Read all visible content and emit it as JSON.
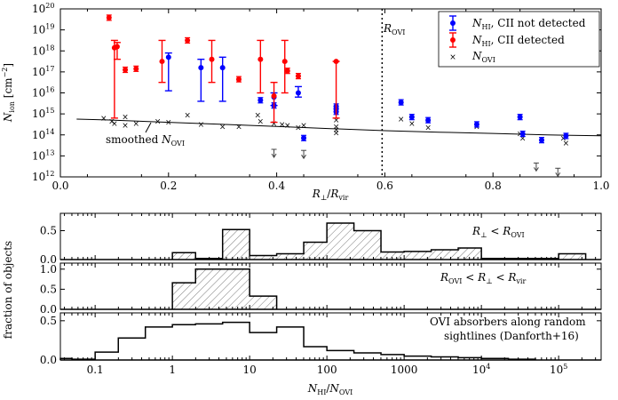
{
  "chart_data": [
    {
      "type": "scatter",
      "xlabel_main": "R",
      "xlabel_sub1": "⊥",
      "xlabel_sep": "/",
      "xlabel_main2": "R",
      "xlabel_sub2": "vir",
      "ylabel_main": "N",
      "ylabel_sub": "ion",
      "ylabel_unit": " [cm",
      "ylabel_unit_exp": "−2",
      "ylabel_unit_end": "]",
      "xlim": [
        0.0,
        1.0
      ],
      "ylim_log10": [
        12,
        20
      ],
      "x_ticks": [
        "0.0",
        "0.2",
        "0.4",
        "0.6",
        "0.8",
        "1.0"
      ],
      "y_ticks": [
        {
          "e": "12",
          "v": 12
        },
        {
          "e": "13",
          "v": 13
        },
        {
          "e": "14",
          "v": 14
        },
        {
          "e": "15",
          "v": 15
        },
        {
          "e": "16",
          "v": 16
        },
        {
          "e": "17",
          "v": 17
        },
        {
          "e": "18",
          "v": 18
        },
        {
          "e": "19",
          "v": 19
        },
        {
          "e": "20",
          "v": 20
        }
      ],
      "tick_base": "10",
      "vline": {
        "x": 0.595,
        "label_main": "R",
        "label_sub": "OVI"
      },
      "smoothed": {
        "label_pre": "smoothed ",
        "label_main": "N",
        "label_sub": "OVI",
        "x": [
          0.03,
          0.1,
          0.2,
          0.3,
          0.4,
          0.5,
          0.6,
          0.7,
          0.8,
          0.9,
          1.0
        ],
        "log_y": [
          14.75,
          14.7,
          14.6,
          14.5,
          14.4,
          14.3,
          14.2,
          14.13,
          14.07,
          14.0,
          13.96
        ]
      },
      "legend": {
        "position": "top-right",
        "entries": [
          {
            "key": "blue",
            "main": "N",
            "sub": "HI",
            "rest": ", CII not detected",
            "color": "#0000ff"
          },
          {
            "key": "red",
            "main": "N",
            "sub": "HI",
            "rest": ", CII detected",
            "color": "#ff0000"
          },
          {
            "key": "ovi",
            "main": "N",
            "sub": "OVI",
            "rest": "",
            "color": "#555555"
          }
        ]
      },
      "series_red": [
        {
          "x": 0.09,
          "y": 19.58
        },
        {
          "x": 0.1,
          "y": 18.15,
          "lo": 14.8,
          "hi": 18.5
        },
        {
          "x": 0.105,
          "y": 18.2,
          "lo": 17.6,
          "hi": 18.4
        },
        {
          "x": 0.12,
          "y": 17.1
        },
        {
          "x": 0.14,
          "y": 17.15
        },
        {
          "x": 0.188,
          "y": 17.5,
          "lo": 16.5,
          "hi": 18.5
        },
        {
          "x": 0.235,
          "y": 18.5
        },
        {
          "x": 0.28,
          "y": 17.6,
          "lo": 16.5,
          "hi": 18.5
        },
        {
          "x": 0.33,
          "y": 16.65
        },
        {
          "x": 0.37,
          "y": 17.6,
          "lo": 16.0,
          "hi": 18.5
        },
        {
          "x": 0.395,
          "y": 15.85,
          "lo": 14.6,
          "hi": 16.5
        },
        {
          "x": 0.415,
          "y": 17.5,
          "lo": 16.0,
          "hi": 18.5
        },
        {
          "x": 0.42,
          "y": 17.05
        },
        {
          "x": 0.44,
          "y": 16.8
        },
        {
          "x": 0.51,
          "y": 17.5,
          "lo": 14.8,
          "hi": 17.5
        }
      ],
      "series_blue": [
        {
          "x": 0.2,
          "y": 17.7,
          "lo": 16.1,
          "hi": 17.9
        },
        {
          "x": 0.26,
          "y": 17.2,
          "lo": 15.6,
          "hi": 17.6
        },
        {
          "x": 0.3,
          "y": 17.2,
          "lo": 15.6,
          "hi": 17.7
        },
        {
          "x": 0.37,
          "y": 15.65
        },
        {
          "x": 0.395,
          "y": 15.8,
          "lo": 15.4,
          "hi": 16.0
        },
        {
          "x": 0.395,
          "y": 15.4
        },
        {
          "x": 0.44,
          "y": 16.0,
          "lo": 15.8,
          "hi": 16.3
        },
        {
          "x": 0.45,
          "y": 13.85
        },
        {
          "x": 0.51,
          "y": 15.35
        },
        {
          "x": 0.51,
          "y": 15.1
        },
        {
          "x": 0.51,
          "y": 15.25
        },
        {
          "x": 0.63,
          "y": 15.55
        },
        {
          "x": 0.65,
          "y": 14.85
        },
        {
          "x": 0.68,
          "y": 14.7
        },
        {
          "x": 0.77,
          "y": 14.5
        },
        {
          "x": 0.85,
          "y": 14.85
        },
        {
          "x": 0.855,
          "y": 14.05
        },
        {
          "x": 0.89,
          "y": 13.75
        },
        {
          "x": 0.935,
          "y": 13.95
        }
      ],
      "series_ovi": [
        {
          "x": 0.08,
          "y": 14.8
        },
        {
          "x": 0.095,
          "y": 14.65
        },
        {
          "x": 0.1,
          "y": 14.55
        },
        {
          "x": 0.12,
          "y": 14.85
        },
        {
          "x": 0.12,
          "y": 14.45
        },
        {
          "x": 0.14,
          "y": 14.55
        },
        {
          "x": 0.18,
          "y": 14.65
        },
        {
          "x": 0.2,
          "y": 14.6
        },
        {
          "x": 0.235,
          "y": 14.95
        },
        {
          "x": 0.26,
          "y": 14.5
        },
        {
          "x": 0.3,
          "y": 14.4
        },
        {
          "x": 0.33,
          "y": 14.4
        },
        {
          "x": 0.365,
          "y": 14.95
        },
        {
          "x": 0.37,
          "y": 14.65
        },
        {
          "x": 0.395,
          "y": 14.55
        },
        {
          "x": 0.41,
          "y": 14.5
        },
        {
          "x": 0.42,
          "y": 14.45
        },
        {
          "x": 0.44,
          "y": 14.35
        },
        {
          "x": 0.45,
          "y": 14.45
        },
        {
          "x": 0.51,
          "y": 14.7
        },
        {
          "x": 0.51,
          "y": 14.4
        },
        {
          "x": 0.51,
          "y": 14.25
        },
        {
          "x": 0.51,
          "y": 14.1
        },
        {
          "x": 0.63,
          "y": 14.75
        },
        {
          "x": 0.65,
          "y": 14.55
        },
        {
          "x": 0.68,
          "y": 14.35
        },
        {
          "x": 0.77,
          "y": 14.4
        },
        {
          "x": 0.85,
          "y": 14.05
        },
        {
          "x": 0.855,
          "y": 13.85
        },
        {
          "x": 0.93,
          "y": 13.85
        },
        {
          "x": 0.935,
          "y": 13.6
        }
      ],
      "upper_limits": [
        {
          "x": 0.395,
          "y": 13.1
        },
        {
          "x": 0.45,
          "y": 13.05
        },
        {
          "x": 0.88,
          "y": 12.45
        },
        {
          "x": 0.92,
          "y": 12.2
        }
      ]
    },
    {
      "type": "step-histogram",
      "shared_xlabel_main": "N",
      "shared_xlabel_sub": "HI",
      "shared_xlabel_sep": "/",
      "shared_xlabel_main2": "N",
      "shared_xlabel_sub2": "OVI",
      "shared_ylabel": "fraction of objects",
      "x_scale": "log",
      "xlim_log10": [
        -1.45,
        5.55
      ],
      "x_ticks": [
        {
          "v": -1,
          "text": "0.1"
        },
        {
          "v": 0,
          "text": "1"
        },
        {
          "v": 1,
          "text": "10"
        },
        {
          "v": 2,
          "text": "100"
        },
        {
          "v": 3,
          "text": "1000"
        },
        {
          "v": 4,
          "text": "10",
          "exp": "4"
        },
        {
          "v": 5,
          "text": "10",
          "exp": "5"
        }
      ],
      "panels": [
        {
          "label_main1": "R",
          "label_sub1": "⊥",
          "label_mid": " < ",
          "label_main2": "R",
          "label_sub2": "OVI",
          "ylim": [
            0,
            0.8
          ],
          "y_ticks": [
            "0.5",
            "0.0"
          ],
          "bin_edges_log10": [
            0,
            0.3,
            0.65,
            1.0,
            1.35,
            1.7,
            2.0,
            2.35,
            2.7,
            3.0,
            3.35,
            3.7,
            4.0,
            4.35,
            4.7,
            5.0,
            5.35
          ],
          "values": [
            0.12,
            0.02,
            0.52,
            0.07,
            0.1,
            0.3,
            0.63,
            0.5,
            0.13,
            0.14,
            0.17,
            0.2,
            0.02,
            0.02,
            0.02,
            0.1
          ],
          "hatched": true
        },
        {
          "label_main1": "R",
          "label_sub1": "OVI",
          "label_mid": " < ",
          "label_main2": "R",
          "label_sub2": "⊥",
          "label_mid2": " < ",
          "label_main3": "R",
          "label_sub3": "vir",
          "ylim": [
            0,
            1.15
          ],
          "y_ticks": [
            "1.0",
            "0.5",
            "0.0"
          ],
          "bin_edges_log10": [
            0,
            0.3,
            0.65,
            1.0,
            1.35
          ],
          "values": [
            0.66,
            1.0,
            1.0,
            0.33
          ],
          "hatched": true
        },
        {
          "label_line1": "OVI absorbers along random",
          "label_line2": "sightlines (Danforth+16)",
          "ylim": [
            0,
            0.6
          ],
          "y_ticks": [
            "0.5",
            "0.0"
          ],
          "bin_edges_log10": [
            -1.45,
            -1.3,
            -1.0,
            -0.7,
            -0.35,
            0.0,
            0.3,
            0.65,
            1.0,
            1.35,
            1.7,
            2.0,
            2.35,
            2.7,
            3.0,
            3.35,
            3.7,
            4.0,
            4.35,
            4.7
          ],
          "values": [
            0.02,
            0.01,
            0.1,
            0.28,
            0.42,
            0.45,
            0.46,
            0.48,
            0.35,
            0.42,
            0.17,
            0.12,
            0.09,
            0.07,
            0.05,
            0.04,
            0.03,
            0.02,
            0.01
          ],
          "hatched": false
        }
      ]
    }
  ]
}
